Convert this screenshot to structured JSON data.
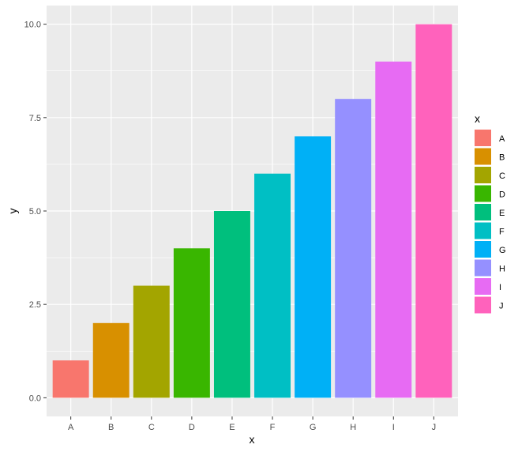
{
  "chart_data": {
    "type": "bar",
    "categories": [
      "A",
      "B",
      "C",
      "D",
      "E",
      "F",
      "G",
      "H",
      "I",
      "J"
    ],
    "values": [
      1,
      2,
      3,
      4,
      5,
      6,
      7,
      8,
      9,
      10
    ],
    "colors": [
      "#F8766D",
      "#D89000",
      "#A3A500",
      "#39B600",
      "#00BF7D",
      "#00BFC4",
      "#00B0F6",
      "#9590FF",
      "#E76BF3",
      "#FF62BC"
    ],
    "xlabel": "x",
    "ylabel": "y",
    "ylim": [
      0,
      10.5
    ],
    "yticks": [
      0,
      2.5,
      5,
      7.5,
      10
    ],
    "ytick_labels": [
      "0.0",
      "2.5",
      "5.0",
      "7.5",
      "10.0"
    ],
    "legend_title": "x",
    "legend_position": "right",
    "grid": true,
    "panel_background": "#EBEBEB",
    "grid_color": "#FFFFFF"
  }
}
